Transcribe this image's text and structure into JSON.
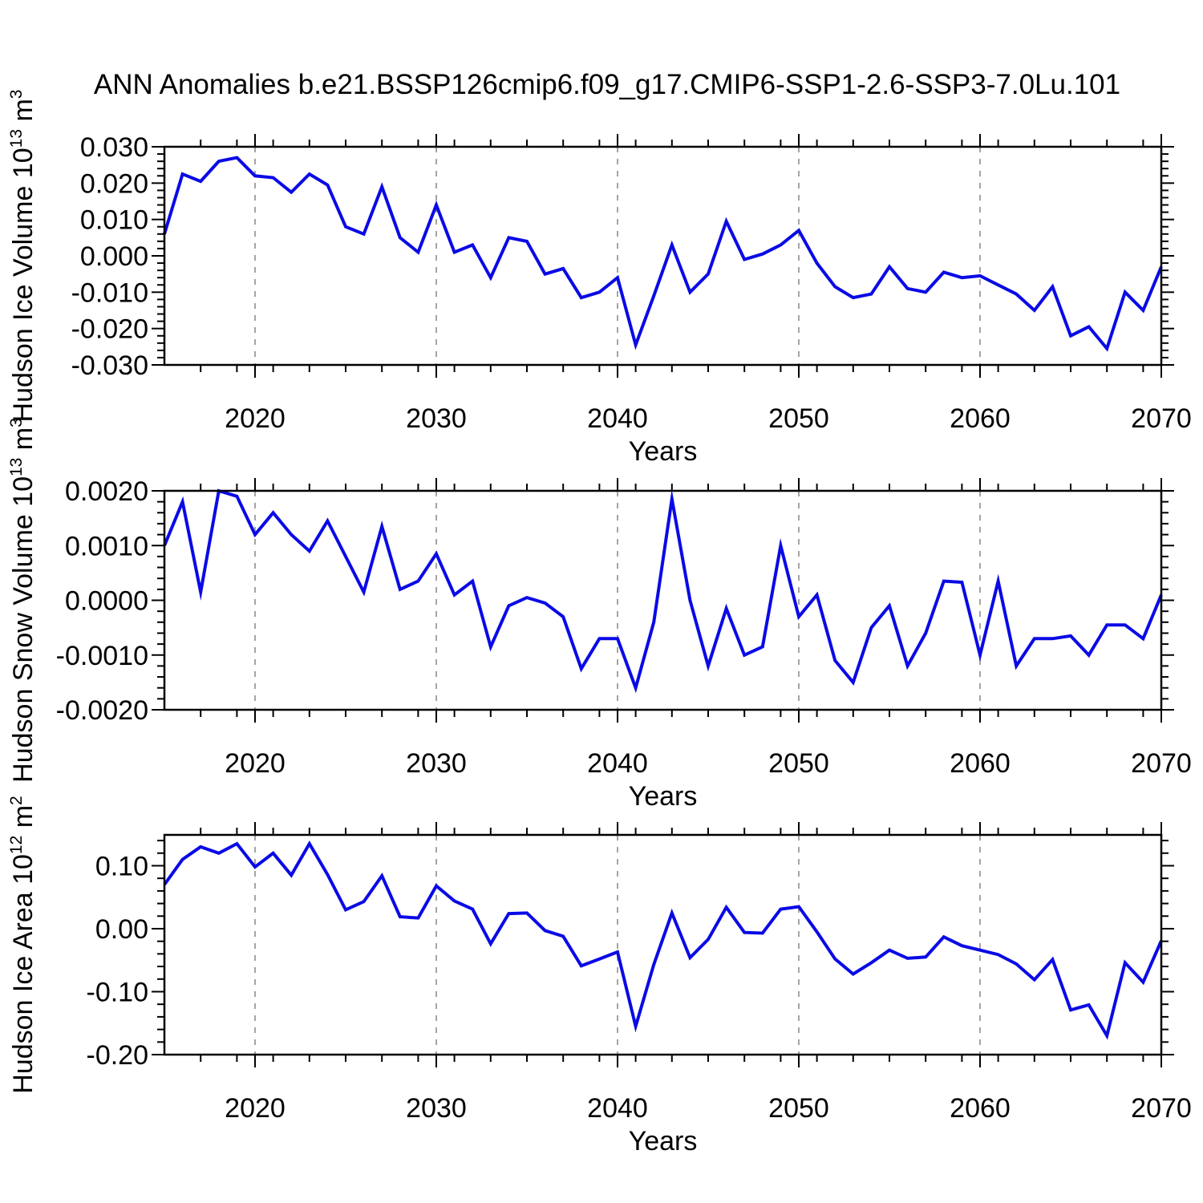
{
  "colors": {
    "line": "#0a0ae6",
    "frame": "#000000",
    "tick": "#000000",
    "grid": "#9a9a9a",
    "text": "#000000",
    "background": "#ffffff"
  },
  "chart_data": {
    "type": "line",
    "suptitle": "ANN Anomalies b.e21.BSSP126cmip6.f09_g17.CMIP6-SSP1-2.6-SSP3-7.0Lu.101",
    "xlabel": "Years",
    "xlim": [
      2015,
      2070
    ],
    "xticks_labeled": [
      2020,
      2030,
      2040,
      2050,
      2060,
      2070
    ],
    "xtick_minor_step": 2,
    "grid_x": [
      2020,
      2030,
      2040,
      2050,
      2060
    ],
    "grid_style": "dashed",
    "legend": "none",
    "x": [
      2015,
      2016,
      2017,
      2018,
      2019,
      2020,
      2021,
      2022,
      2023,
      2024,
      2025,
      2026,
      2027,
      2028,
      2029,
      2030,
      2031,
      2032,
      2033,
      2034,
      2035,
      2036,
      2037,
      2038,
      2039,
      2040,
      2041,
      2042,
      2043,
      2044,
      2045,
      2046,
      2047,
      2048,
      2049,
      2050,
      2051,
      2052,
      2053,
      2054,
      2055,
      2056,
      2057,
      2058,
      2059,
      2060,
      2061,
      2062,
      2063,
      2064,
      2065,
      2066,
      2067,
      2068,
      2069,
      2070
    ],
    "panels": [
      {
        "name": "hudson-ice-volume",
        "ylabel_segments": [
          [
            "Hudson Ice Volume 10",
            false
          ],
          [
            "13",
            true
          ],
          [
            " m",
            false
          ],
          [
            "3",
            true
          ]
        ],
        "ylim": [
          -0.03,
          0.03
        ],
        "ytick_values": [
          0.03,
          0.02,
          0.01,
          0.0,
          -0.01,
          -0.02,
          -0.03
        ],
        "ytick_minor_step": 0.002,
        "ytick_decimals": 3,
        "values": [
          0.006,
          0.0225,
          0.0205,
          0.026,
          0.027,
          0.022,
          0.0215,
          0.0175,
          0.0225,
          0.0195,
          0.008,
          0.006,
          0.019,
          0.005,
          0.001,
          0.014,
          0.001,
          0.003,
          -0.006,
          0.005,
          0.004,
          -0.005,
          -0.0035,
          -0.0115,
          -0.01,
          -0.006,
          -0.0245,
          -0.011,
          0.003,
          -0.01,
          -0.005,
          0.0095,
          -0.001,
          0.0005,
          0.003,
          0.007,
          -0.002,
          -0.0085,
          -0.0115,
          -0.0105,
          -0.003,
          -0.009,
          -0.01,
          -0.0045,
          -0.006,
          -0.0055,
          -0.008,
          -0.0105,
          -0.015,
          -0.0085,
          -0.022,
          -0.0195,
          -0.0255,
          -0.01,
          -0.015,
          -0.003
        ]
      },
      {
        "name": "hudson-snow-volume",
        "ylabel_segments": [
          [
            "Hudson Snow Volume 10",
            false
          ],
          [
            "13",
            true
          ],
          [
            " m",
            false
          ],
          [
            "3",
            true
          ]
        ],
        "ylim": [
          -0.002,
          0.002
        ],
        "ytick_values": [
          0.002,
          0.001,
          0.0,
          -0.001,
          -0.002
        ],
        "ytick_minor_step": 0.0002,
        "ytick_decimals": 4,
        "values": [
          0.001,
          0.0018,
          0.00015,
          0.002,
          0.0019,
          0.0012,
          0.0016,
          0.0012,
          0.0009,
          0.00145,
          0.0008,
          0.00015,
          0.00135,
          0.0002,
          0.00035,
          0.00085,
          0.0001,
          0.00035,
          -0.00085,
          -0.0001,
          5e-05,
          -5e-05,
          -0.0003,
          -0.00125,
          -0.0007,
          -0.0007,
          -0.0016,
          -0.0004,
          0.00185,
          0.0,
          -0.0012,
          -0.00015,
          -0.001,
          -0.00085,
          0.001,
          -0.0003,
          0.0001,
          -0.0011,
          -0.0015,
          -0.0005,
          -0.0001,
          -0.0012,
          -0.0006,
          0.00035,
          0.00033,
          -0.001,
          0.00035,
          -0.0012,
          -0.0007,
          -0.0007,
          -0.00065,
          -0.001,
          -0.00045,
          -0.00045,
          -0.0007,
          0.0001
        ]
      },
      {
        "name": "hudson-ice-area",
        "ylabel_segments": [
          [
            "Hudson Ice Area 10",
            false
          ],
          [
            "12",
            true
          ],
          [
            " m",
            false
          ],
          [
            "2",
            true
          ]
        ],
        "ylim": [
          -0.2,
          0.149
        ],
        "ytick_values": [
          0.1,
          0.0,
          -0.1,
          -0.2
        ],
        "ytick_minor_step": 0.02,
        "ytick_decimals": 2,
        "values": [
          0.07,
          0.11,
          0.13,
          0.12,
          0.135,
          0.098,
          0.12,
          0.085,
          0.135,
          0.086,
          0.03,
          0.043,
          0.084,
          0.019,
          0.017,
          0.068,
          0.044,
          0.031,
          -0.024,
          0.024,
          0.025,
          -0.003,
          -0.012,
          -0.059,
          -0.048,
          -0.037,
          -0.155,
          -0.057,
          0.025,
          -0.046,
          -0.017,
          0.034,
          -0.006,
          -0.007,
          0.031,
          0.035,
          -0.005,
          -0.048,
          -0.072,
          -0.054,
          -0.034,
          -0.047,
          -0.045,
          -0.013,
          -0.027,
          -0.034,
          -0.041,
          -0.056,
          -0.081,
          -0.049,
          -0.129,
          -0.121,
          -0.17,
          -0.054,
          -0.085,
          -0.019
        ]
      }
    ]
  }
}
